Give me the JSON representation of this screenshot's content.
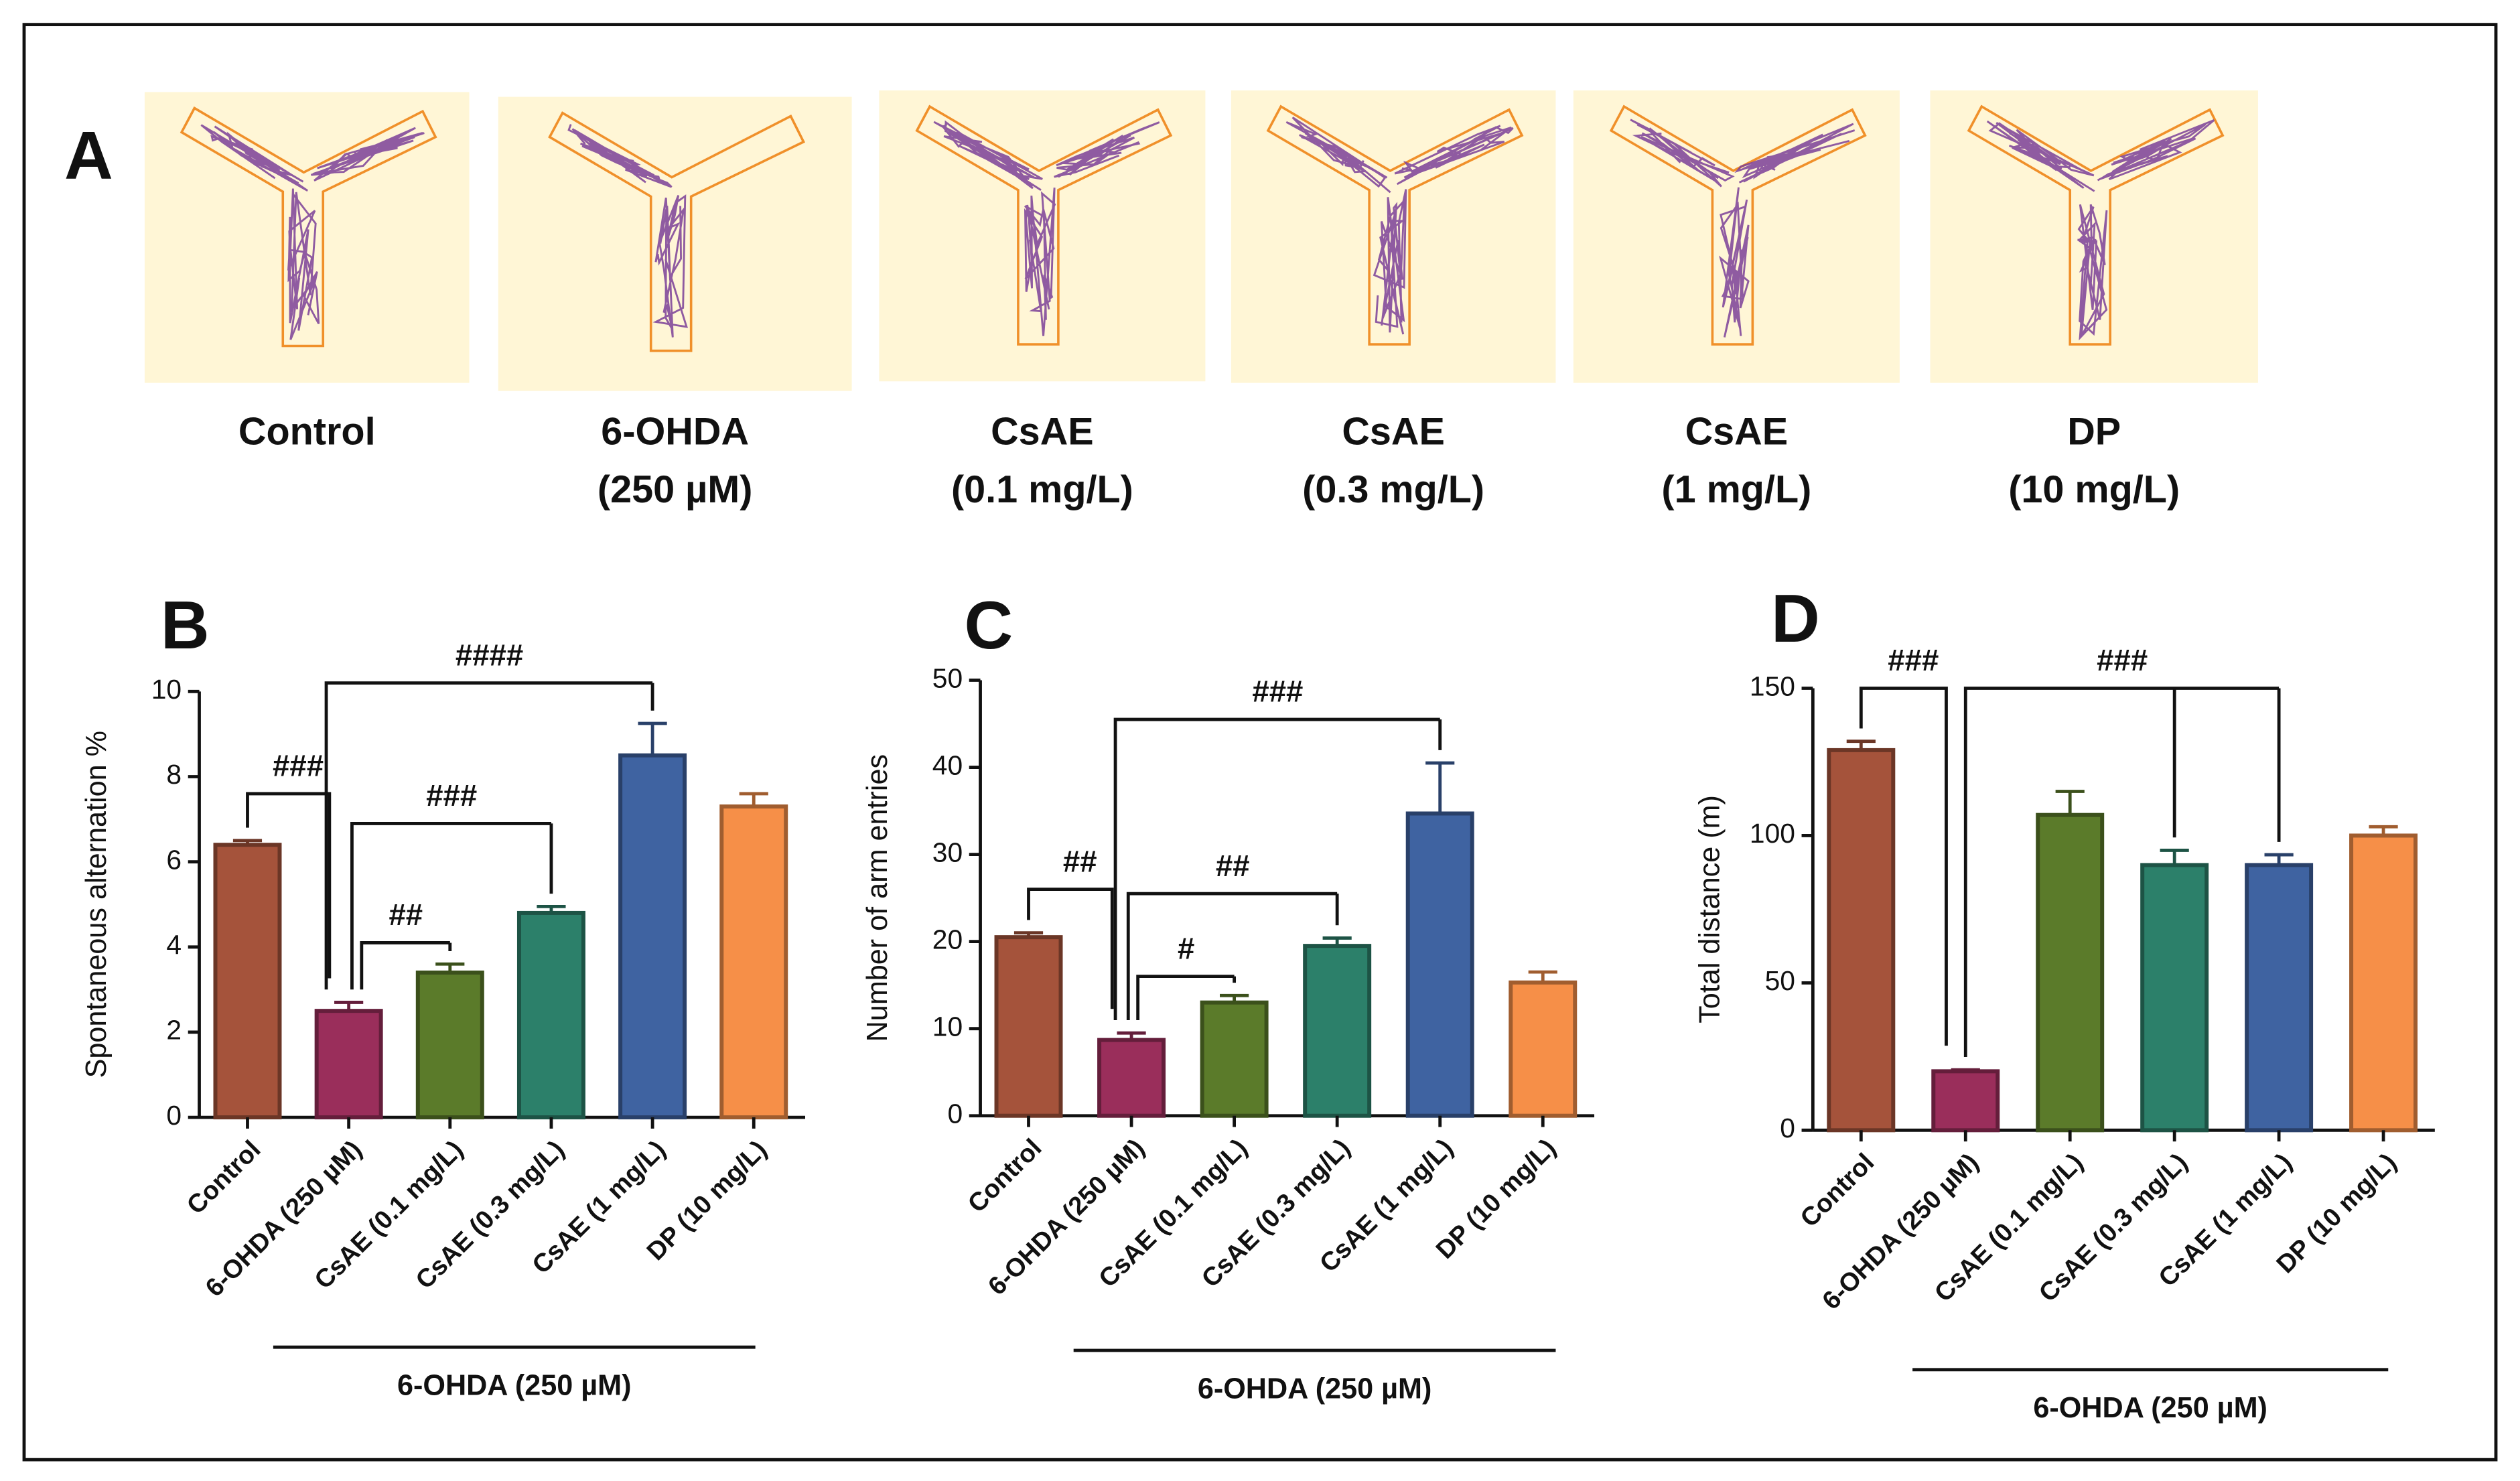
{
  "panel_a": {
    "label": "A",
    "groups": [
      [
        "Control"
      ],
      [
        "6-OHDA",
        "(250 µM)"
      ],
      [
        "CsAE",
        "(0.1 mg/L)"
      ],
      [
        "CsAE",
        "(0.3 mg/L)"
      ],
      [
        "CsAE",
        "(1 mg/L)"
      ],
      [
        "DP",
        "(10 mg/L)"
      ]
    ]
  },
  "chart_data": [
    {
      "type": "bar",
      "panel": "B",
      "ylabel": "Spontaneous alternation %",
      "categories": [
        "Control",
        "6-OHDA (250 µM)",
        "CsAE (0.1 mg/L)",
        "CsAE (0.3 mg/L)",
        "CsAE (1 mg/L)",
        "DP (10 mg/L)"
      ],
      "values": [
        6.4,
        2.5,
        3.4,
        4.8,
        8.5,
        7.3
      ],
      "errors": [
        0.1,
        0.2,
        0.2,
        0.15,
        0.75,
        0.3
      ],
      "colors": [
        "#a5533b",
        "#9a2e5b",
        "#5b7b2a",
        "#2c806a",
        "#3f63a1",
        "#f68f48"
      ],
      "ylim": [
        0,
        10
      ],
      "yticks": [
        0,
        2,
        4,
        6,
        8,
        10
      ],
      "group_label": "6-OHDA (250 µM)",
      "annotations": [
        "###",
        "##",
        "###",
        "####"
      ]
    },
    {
      "type": "bar",
      "panel": "C",
      "ylabel": "Number of arm entries",
      "categories": [
        "Control",
        "6-OHDA (250 µM)",
        "CsAE (0.1 mg/L)",
        "CsAE (0.3 mg/L)",
        "CsAE (1 mg/L)",
        "DP (10 mg/L)"
      ],
      "values": [
        20.5,
        8.7,
        13,
        19.5,
        34.7,
        15.3
      ],
      "errors": [
        0.5,
        0.8,
        0.8,
        0.9,
        5.8,
        1.2
      ],
      "colors": [
        "#a5533b",
        "#9a2e5b",
        "#5b7b2a",
        "#2c806a",
        "#3f63a1",
        "#f68f48"
      ],
      "ylim": [
        0,
        50
      ],
      "yticks": [
        0,
        10,
        20,
        30,
        40,
        50
      ],
      "group_label": "6-OHDA (250 µM)",
      "annotations": [
        "##",
        "#",
        "##",
        "###"
      ]
    },
    {
      "type": "bar",
      "panel": "D",
      "ylabel": "Total distance (m)",
      "categories": [
        "Control",
        "6-OHDA (250 µM)",
        "CsAE (0.1 mg/L)",
        "CsAE (0.3 mg/L)",
        "CsAE (1 mg/L)",
        "DP (10 mg/L)"
      ],
      "values": [
        129,
        20,
        107,
        90,
        90,
        100
      ],
      "errors": [
        3,
        0.5,
        8,
        5,
        3.5,
        3
      ],
      "colors": [
        "#a5533b",
        "#9a2e5b",
        "#5b7b2a",
        "#2c806a",
        "#3f63a1",
        "#f68f48"
      ],
      "ylim": [
        0,
        150
      ],
      "yticks": [
        0,
        50,
        100,
        150
      ],
      "group_label": "6-OHDA (250 µM)",
      "annotations": [
        "###",
        "###"
      ]
    }
  ]
}
